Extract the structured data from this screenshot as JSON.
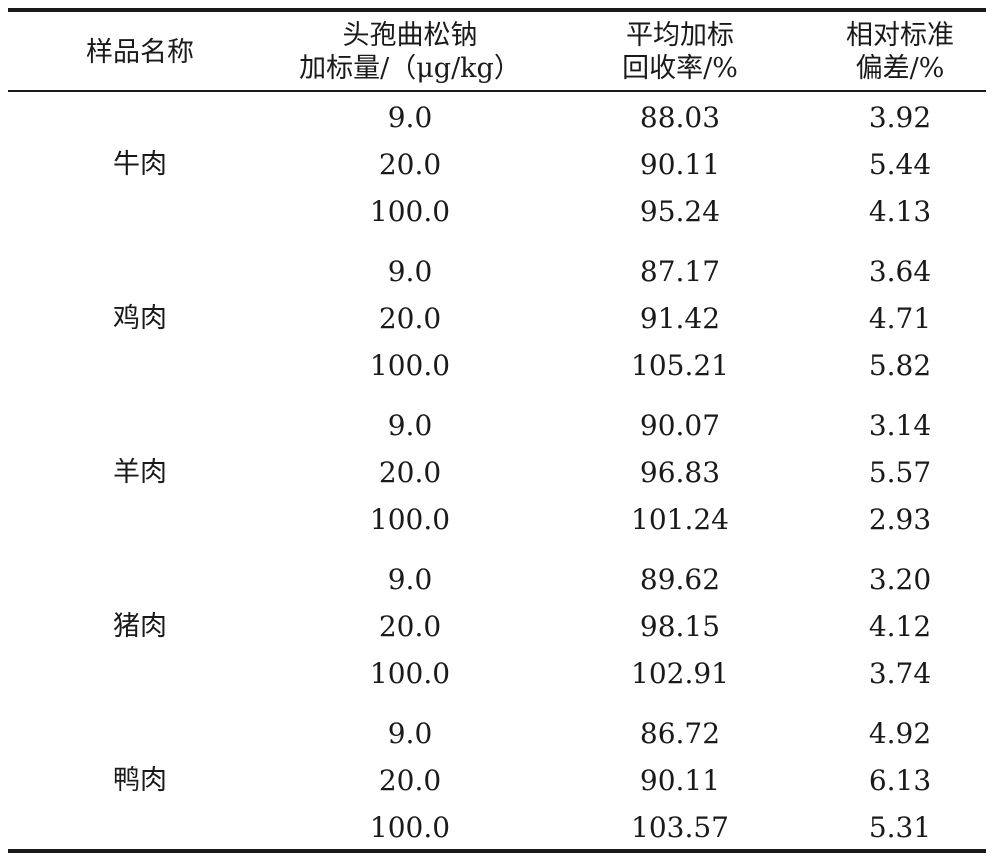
{
  "headers": {
    "sample": "样品名称",
    "spike_line1": "头孢曲松钠",
    "spike_line2": "加标量/（μg/kg）",
    "recovery_line1": "平均加标",
    "recovery_line2": "回收率/%",
    "rsd_line1": "相对标准",
    "rsd_line2": "偏差/%"
  },
  "groups": [
    {
      "name": "牛肉",
      "rows": [
        {
          "spike": "9.0",
          "recovery": "88.03",
          "rsd": "3.92"
        },
        {
          "spike": "20.0",
          "recovery": "90.11",
          "rsd": "5.44"
        },
        {
          "spike": "100.0",
          "recovery": "95.24",
          "rsd": "4.13"
        }
      ]
    },
    {
      "name": "鸡肉",
      "rows": [
        {
          "spike": "9.0",
          "recovery": "87.17",
          "rsd": "3.64"
        },
        {
          "spike": "20.0",
          "recovery": "91.42",
          "rsd": "4.71"
        },
        {
          "spike": "100.0",
          "recovery": "105.21",
          "rsd": "5.82"
        }
      ]
    },
    {
      "name": "羊肉",
      "rows": [
        {
          "spike": "9.0",
          "recovery": "90.07",
          "rsd": "3.14"
        },
        {
          "spike": "20.0",
          "recovery": "96.83",
          "rsd": "5.57"
        },
        {
          "spike": "100.0",
          "recovery": "101.24",
          "rsd": "2.93"
        }
      ]
    },
    {
      "name": "猪肉",
      "rows": [
        {
          "spike": "9.0",
          "recovery": "89.62",
          "rsd": "3.20"
        },
        {
          "spike": "20.0",
          "recovery": "98.15",
          "rsd": "4.12"
        },
        {
          "spike": "100.0",
          "recovery": "102.91",
          "rsd": "3.74"
        }
      ]
    },
    {
      "name": "鸭肉",
      "rows": [
        {
          "spike": "9.0",
          "recovery": "86.72",
          "rsd": "4.92"
        },
        {
          "spike": "20.0",
          "recovery": "90.11",
          "rsd": "6.13"
        },
        {
          "spike": "100.0",
          "recovery": "103.57",
          "rsd": "5.31"
        }
      ]
    }
  ]
}
